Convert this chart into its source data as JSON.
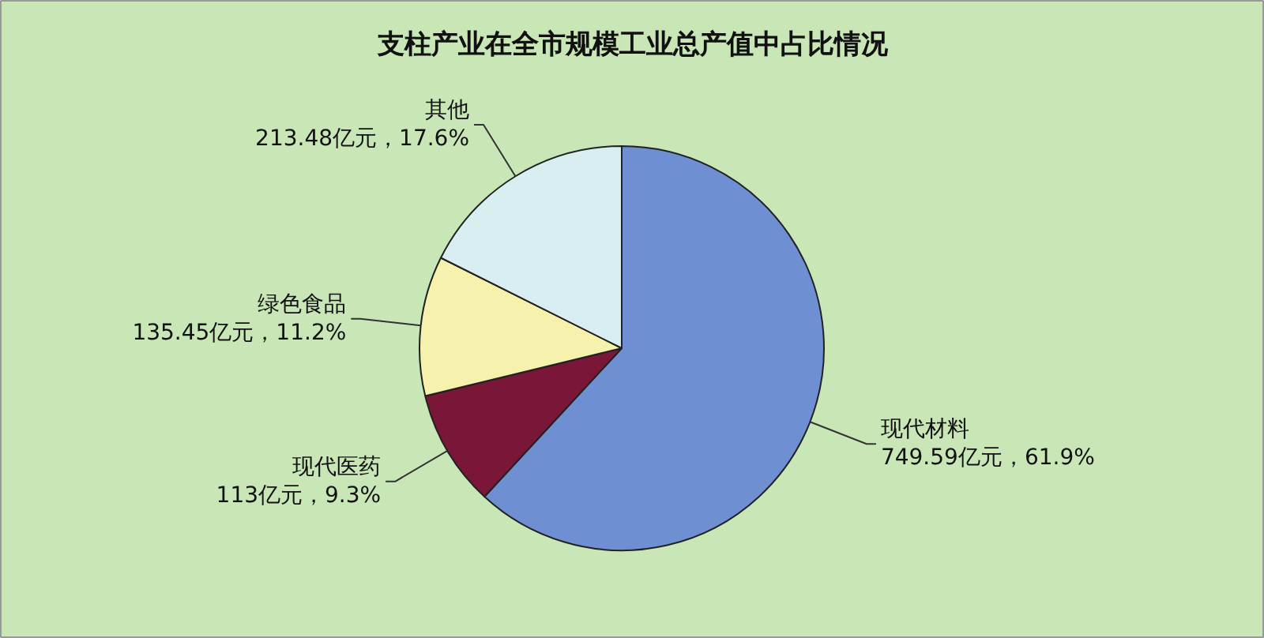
{
  "chart_data": {
    "type": "pie",
    "title": "支柱产业在全市规模工业总产值中占比情况",
    "categories": [
      "现代材料",
      "现代医药",
      "绿色食品",
      "其他"
    ],
    "values": [
      749.59,
      113,
      135.45,
      213.48
    ],
    "colors": [
      "#6f8fd3",
      "#7a1638",
      "#f6f2ae",
      "#d8eef0"
    ],
    "value_labels": [
      "749.59亿元，61.9%",
      "113亿元，9.3%",
      "135.45亿元，11.2%",
      "213.48亿元，17.6%"
    ]
  }
}
